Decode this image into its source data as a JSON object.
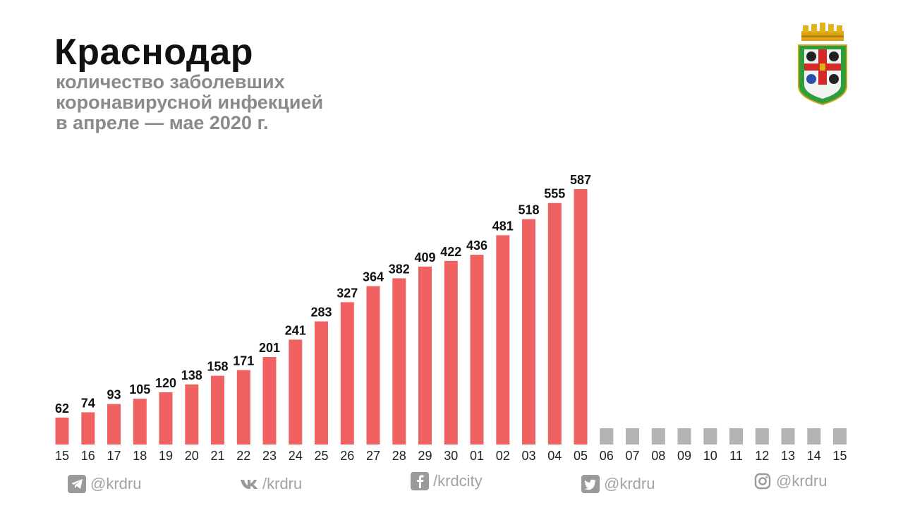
{
  "header": {
    "title": "Краснодар",
    "subtitle_lines": [
      "количество заболевших",
      "коронавирусной инфекцией",
      "в апреле — мае 2020 г."
    ]
  },
  "colors": {
    "bar": "#f06161",
    "future_bar": "#b3b3b3",
    "title": "#111111",
    "subtitle": "#8a8a8a",
    "social": "#a2a2a2"
  },
  "chart_data": {
    "type": "bar",
    "title": "",
    "xlabel": "",
    "ylabel": "",
    "categories": [
      "15",
      "16",
      "17",
      "18",
      "19",
      "20",
      "21",
      "22",
      "23",
      "24",
      "25",
      "26",
      "27",
      "28",
      "29",
      "30",
      "01",
      "02",
      "03",
      "04",
      "05",
      "06",
      "07",
      "08",
      "09",
      "10",
      "11",
      "12",
      "13",
      "14",
      "15"
    ],
    "values": [
      62,
      74,
      93,
      105,
      120,
      138,
      158,
      171,
      201,
      241,
      283,
      327,
      364,
      382,
      409,
      422,
      436,
      481,
      518,
      555,
      587,
      null,
      null,
      null,
      null,
      null,
      null,
      null,
      null,
      null,
      null
    ],
    "future_categories": [
      "06",
      "07",
      "08",
      "09",
      "10",
      "11",
      "12",
      "13",
      "14",
      "15"
    ],
    "ylim": [
      0,
      600
    ],
    "grid": false,
    "legend": "none",
    "data_labels": true
  },
  "socials": [
    {
      "icon": "telegram-icon",
      "handle": "@krdru"
    },
    {
      "icon": "vk-icon",
      "handle": "/krdru"
    },
    {
      "icon": "facebook-icon",
      "handle": "/krdcity"
    },
    {
      "icon": "twitter-icon",
      "handle": "@krdru"
    },
    {
      "icon": "instagram-icon",
      "handle": "@krdru"
    }
  ]
}
